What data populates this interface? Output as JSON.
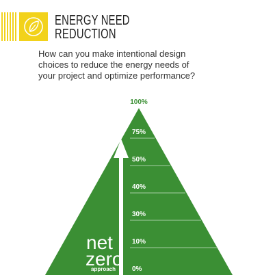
{
  "header": {
    "title_lines": [
      "ENERGY NEED",
      "REDUCTION"
    ],
    "subtitle_lines": [
      "How can you make intentional design",
      "choices to reduce the energy needs of",
      "your project and optimize performance?"
    ],
    "badge_icon": "leaf-icon",
    "accent_color": "#f2d21b"
  },
  "pyramid": {
    "color": "#3b8f34",
    "top_label": "100%",
    "levels": [
      "75%",
      "50%",
      "40%",
      "30%",
      "10%",
      "0%"
    ],
    "net_label": "net",
    "zero_label": "zero",
    "approach_label": "approach"
  }
}
